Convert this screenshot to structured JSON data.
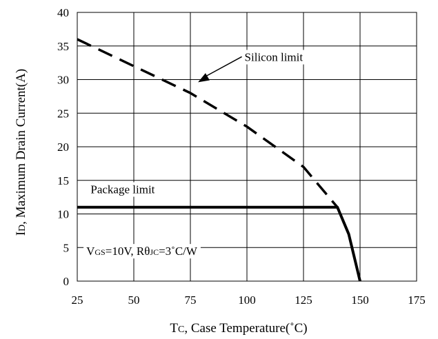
{
  "chart_data": {
    "type": "line",
    "title": "",
    "xlabel": "TC, Case Temperature(˚C)",
    "ylabel": "ID, Maximum Drain Current(A)",
    "xlabel_parts": {
      "main": "T",
      "sub": "C",
      "rest": ", Case Temperature(˚C)"
    },
    "ylabel_parts": {
      "main": "I",
      "sub": "D",
      "rest": ", Maximum Drain Current(A)"
    },
    "xlim": [
      25,
      175
    ],
    "ylim": [
      0,
      40
    ],
    "xticks": [
      25,
      50,
      75,
      100,
      125,
      150,
      175
    ],
    "yticks": [
      0,
      5,
      10,
      15,
      20,
      25,
      30,
      35,
      40
    ],
    "grid": true,
    "series": [
      {
        "name": "Silicon limit",
        "style": "dashed",
        "x": [
          25,
          50,
          75,
          100,
          125,
          135,
          140,
          145,
          150
        ],
        "y": [
          36,
          32,
          28,
          23,
          17,
          13,
          11,
          7,
          0
        ]
      },
      {
        "name": "Package limit",
        "style": "solid",
        "x": [
          25,
          139,
          140,
          145,
          150
        ],
        "y": [
          11,
          11,
          11,
          7,
          0
        ]
      }
    ],
    "annotations": [
      {
        "text": "Silicon limit",
        "x": 102,
        "y": 34
      },
      {
        "text": "Package limit",
        "x": 30,
        "y": 14
      }
    ],
    "condition": {
      "v_main": "V",
      "v_sub": "GS",
      "v_rest": "=10V, R",
      "theta": "θ",
      "r_sub": "JC",
      "r_rest": "=3˚C/W"
    }
  }
}
